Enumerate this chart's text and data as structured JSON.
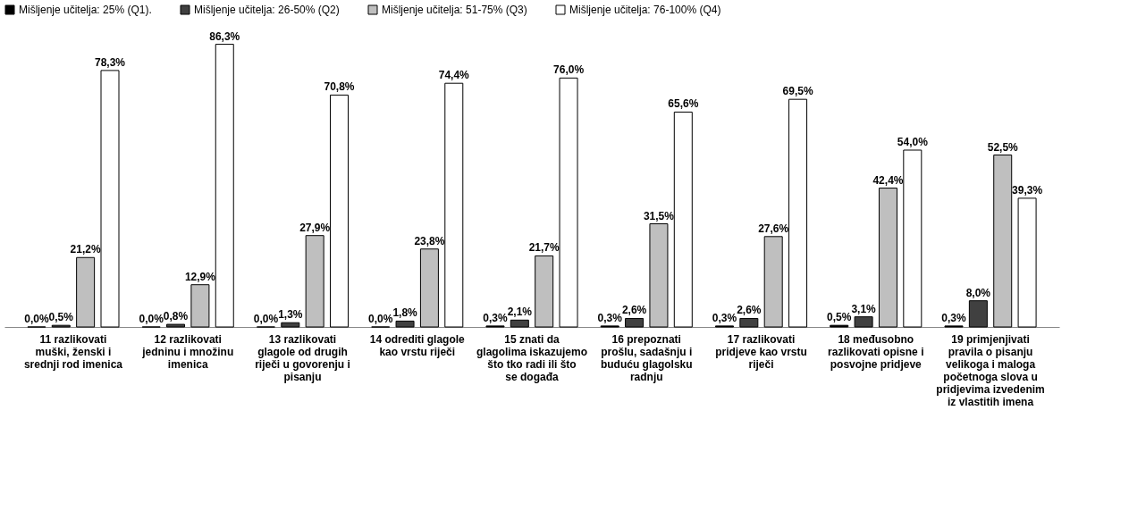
{
  "chart_data": {
    "type": "bar",
    "legend": "top",
    "grid": false,
    "categories": [
      "11 razlikovati muški, ženski i srednji rod imenica",
      "12 razlikovati jedninu i množinu imenica",
      "13 razlikovati glagole od drugih riječi u govorenju i pisanju",
      "14 odrediti glagole kao vrstu riječi",
      "15 znati da glagolima iskazujemo što tko radi ili što se događa",
      "16 prepoznati prošlu, sadašnju i buduću glagolsku radnju",
      "17 razlikovati pridjeve kao vrstu riječi",
      "18 međusobno razlikovati opisne i posvojne pridjeve",
      "19 primjenjivati pravila o pisanju velikoga i maloga početnoga slova u pridjevima izvedenim iz vlastitih imena"
    ],
    "series": [
      {
        "name": "Mišljenje učitelja: 25% (Q1).",
        "color": "#000000",
        "values": [
          0.0,
          0.0,
          0.0,
          0.0,
          0.3,
          0.3,
          0.3,
          0.5,
          0.3
        ],
        "value_labels": [
          "0,0%",
          "0,0%",
          "0,0%",
          "0,0%",
          "0,3%",
          "0,3%",
          "0,3%",
          "0,5%",
          "0,3%"
        ]
      },
      {
        "name": "Mišljenje učitelja: 26-50% (Q2)",
        "color": "#404040",
        "values": [
          0.5,
          0.8,
          1.3,
          1.8,
          2.1,
          2.6,
          2.6,
          3.1,
          8.0
        ],
        "value_labels": [
          "0,5%",
          "0,8%",
          "1,3%",
          "1,8%",
          "2,1%",
          "2,6%",
          "2,6%",
          "3,1%",
          "8,0%"
        ]
      },
      {
        "name": "Mišljenje učitelja: 51-75% (Q3)",
        "color": "#bfbfbf",
        "values": [
          21.2,
          12.9,
          27.9,
          23.8,
          21.7,
          31.5,
          27.6,
          42.4,
          52.5
        ],
        "value_labels": [
          "21,2%",
          "12,9%",
          "27,9%",
          "23,8%",
          "21,7%",
          "31,5%",
          "27,6%",
          "42,4%",
          "52,5%"
        ]
      },
      {
        "name": "Mišljenje učitelja: 76-100% (Q4)",
        "color": "#ffffff",
        "values": [
          78.3,
          86.3,
          70.8,
          74.4,
          76.0,
          65.6,
          69.5,
          54.0,
          39.3
        ],
        "value_labels": [
          "78,3%",
          "86,3%",
          "70,8%",
          "74,4%",
          "76,0%",
          "65,6%",
          "69,5%",
          "54,0%",
          "39,3%"
        ]
      }
    ]
  }
}
